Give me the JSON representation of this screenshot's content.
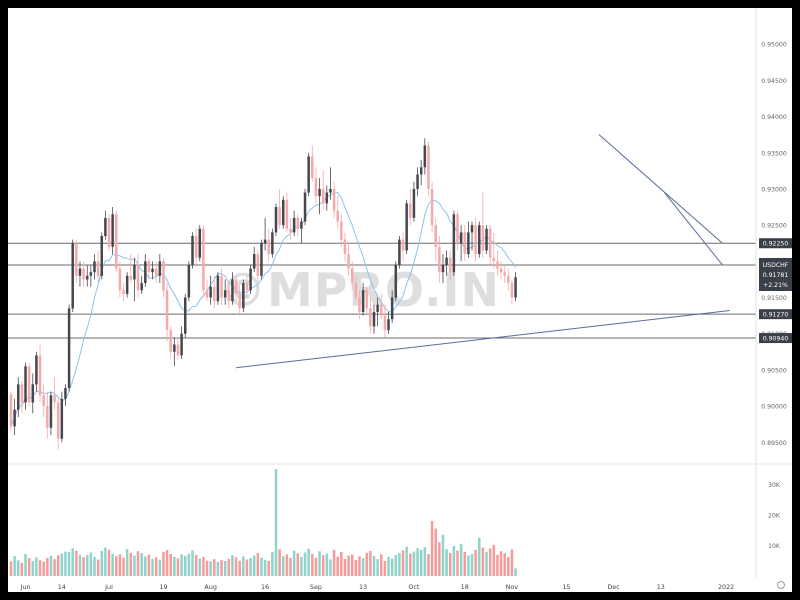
{
  "chart_data": {
    "type": "candlestick",
    "symbol": "USDCHF",
    "watermark": "©MPRO.IN",
    "price_axis": {
      "ylim": [
        0.892,
        0.955
      ],
      "ticks": [
        "0.95000",
        "0.94500",
        "0.94000",
        "0.93500",
        "0.93000",
        "0.92500",
        "0.92000",
        "0.91500",
        "0.91000",
        "0.90500",
        "0.90000",
        "0.89500"
      ],
      "tick_values": [
        0.95,
        0.945,
        0.94,
        0.935,
        0.93,
        0.925,
        0.92,
        0.915,
        0.91,
        0.905,
        0.9,
        0.895
      ]
    },
    "volume_axis": {
      "ylim": [
        0,
        36000
      ],
      "ticks": [
        "30K",
        "20K",
        "10K"
      ],
      "tick_values": [
        30000,
        20000,
        10000
      ]
    },
    "x_axis": {
      "labels": [
        "Jun",
        "14",
        "Jul",
        "19",
        "Aug",
        "16",
        "Sep",
        "13",
        "Oct",
        "18",
        "Nov",
        "15",
        "Dec",
        "13",
        "2022"
      ],
      "label_index": [
        4,
        14,
        27,
        42,
        55,
        70,
        84,
        97,
        111,
        125,
        138,
        153,
        166,
        179,
        197
      ]
    },
    "horizontal_levels": [
      {
        "label": "0.92250",
        "value": 0.9225
      },
      {
        "label": "0.91950",
        "value": 0.9195
      },
      {
        "label": "0.91270",
        "value": 0.9127
      },
      {
        "label": "0.90940",
        "value": 0.9094
      }
    ],
    "price_badge": {
      "symbol": "USDCHF",
      "price": "0.91781",
      "change": "+2.21%",
      "value": 0.91781
    },
    "trend_lines": [
      {
        "from": [
          62,
          0.9053
        ],
        "to": [
          198,
          0.9132
        ]
      },
      {
        "from": [
          162,
          0.9375
        ],
        "to": [
          196,
          0.9225
        ]
      },
      {
        "from": [
          180,
          0.9295
        ],
        "to": [
          196,
          0.9195
        ]
      }
    ],
    "candles": [
      [
        0.9016,
        0.902,
        0.8965,
        0.8972,
        4800
      ],
      [
        0.8972,
        0.901,
        0.896,
        0.8995,
        6500
      ],
      [
        0.8995,
        0.904,
        0.8985,
        0.903,
        5100
      ],
      [
        0.903,
        0.9035,
        0.899,
        0.9005,
        4300
      ],
      [
        0.9005,
        0.906,
        0.8995,
        0.9055,
        7200
      ],
      [
        0.9055,
        0.906,
        0.9,
        0.9005,
        5800
      ],
      [
        0.9005,
        0.9045,
        0.899,
        0.903,
        4900
      ],
      [
        0.903,
        0.9075,
        0.902,
        0.907,
        6100
      ],
      [
        0.907,
        0.9085,
        0.9005,
        0.9015,
        5200
      ],
      [
        0.9015,
        0.903,
        0.8985,
        0.9,
        4700
      ],
      [
        0.9,
        0.902,
        0.8955,
        0.897,
        5900
      ],
      [
        0.897,
        0.902,
        0.896,
        0.9015,
        6600
      ],
      [
        0.9015,
        0.904,
        0.8995,
        0.9005,
        5500
      ],
      [
        0.9005,
        0.901,
        0.894,
        0.8955,
        6800
      ],
      [
        0.8955,
        0.902,
        0.895,
        0.901,
        7400
      ],
      [
        0.901,
        0.903,
        0.9,
        0.9025,
        8000
      ],
      [
        0.9025,
        0.914,
        0.902,
        0.9135,
        7800
      ],
      [
        0.9135,
        0.923,
        0.913,
        0.9225,
        9100
      ],
      [
        0.9225,
        0.923,
        0.917,
        0.918,
        8300
      ],
      [
        0.918,
        0.92,
        0.9165,
        0.919,
        7000
      ],
      [
        0.919,
        0.92,
        0.9165,
        0.9175,
        6200
      ],
      [
        0.9175,
        0.9195,
        0.9165,
        0.918,
        6900
      ],
      [
        0.918,
        0.9195,
        0.9165,
        0.9185,
        7700
      ],
      [
        0.9185,
        0.921,
        0.9175,
        0.92,
        6300
      ],
      [
        0.92,
        0.9215,
        0.917,
        0.918,
        5400
      ],
      [
        0.918,
        0.924,
        0.9175,
        0.9235,
        8200
      ],
      [
        0.9235,
        0.927,
        0.923,
        0.926,
        9300
      ],
      [
        0.926,
        0.9265,
        0.9215,
        0.922,
        8600
      ],
      [
        0.922,
        0.9275,
        0.921,
        0.9265,
        7300
      ],
      [
        0.9265,
        0.927,
        0.9185,
        0.919,
        6500
      ],
      [
        0.919,
        0.92,
        0.915,
        0.916,
        7100
      ],
      [
        0.916,
        0.917,
        0.9145,
        0.9155,
        6000
      ],
      [
        0.9155,
        0.9185,
        0.915,
        0.918,
        8800
      ],
      [
        0.918,
        0.921,
        0.917,
        0.9175,
        7600
      ],
      [
        0.9175,
        0.9205,
        0.9145,
        0.9195,
        6700
      ],
      [
        0.9195,
        0.921,
        0.915,
        0.916,
        8100
      ],
      [
        0.916,
        0.918,
        0.9155,
        0.917,
        7500
      ],
      [
        0.917,
        0.921,
        0.9165,
        0.92,
        6400
      ],
      [
        0.92,
        0.9205,
        0.9175,
        0.9185,
        7000
      ],
      [
        0.9185,
        0.92,
        0.9175,
        0.919,
        5600
      ],
      [
        0.919,
        0.92,
        0.917,
        0.918,
        6100
      ],
      [
        0.918,
        0.921,
        0.917,
        0.92,
        5300
      ],
      [
        0.92,
        0.9205,
        0.915,
        0.916,
        7900
      ],
      [
        0.916,
        0.917,
        0.909,
        0.9105,
        8500
      ],
      [
        0.9105,
        0.911,
        0.9065,
        0.9075,
        7200
      ],
      [
        0.9075,
        0.9095,
        0.9055,
        0.9085,
        6300
      ],
      [
        0.9085,
        0.9095,
        0.9065,
        0.907,
        5800
      ],
      [
        0.907,
        0.911,
        0.9065,
        0.91,
        7100
      ],
      [
        0.91,
        0.9155,
        0.9095,
        0.915,
        6600
      ],
      [
        0.915,
        0.92,
        0.9145,
        0.9195,
        7300
      ],
      [
        0.9195,
        0.924,
        0.919,
        0.9235,
        8400
      ],
      [
        0.9235,
        0.9245,
        0.9195,
        0.9205,
        6900
      ],
      [
        0.9205,
        0.925,
        0.92,
        0.9245,
        5700
      ],
      [
        0.9245,
        0.925,
        0.915,
        0.916,
        6200
      ],
      [
        0.916,
        0.9175,
        0.9145,
        0.915,
        5000
      ],
      [
        0.915,
        0.918,
        0.914,
        0.9165,
        4800
      ],
      [
        0.9165,
        0.918,
        0.9135,
        0.9145,
        5500
      ],
      [
        0.9145,
        0.9185,
        0.914,
        0.918,
        4600
      ],
      [
        0.918,
        0.919,
        0.914,
        0.915,
        5200
      ],
      [
        0.915,
        0.9175,
        0.914,
        0.916,
        4900
      ],
      [
        0.916,
        0.917,
        0.9135,
        0.9145,
        5600
      ],
      [
        0.9145,
        0.9185,
        0.914,
        0.9175,
        6800
      ],
      [
        0.9175,
        0.918,
        0.9145,
        0.9155,
        6100
      ],
      [
        0.9155,
        0.9165,
        0.9125,
        0.9135,
        5000
      ],
      [
        0.9135,
        0.9175,
        0.913,
        0.917,
        6400
      ],
      [
        0.917,
        0.918,
        0.915,
        0.916,
        5400
      ],
      [
        0.916,
        0.9195,
        0.9155,
        0.919,
        5900
      ],
      [
        0.919,
        0.922,
        0.9185,
        0.921,
        6700
      ],
      [
        0.921,
        0.9215,
        0.917,
        0.918,
        7500
      ],
      [
        0.918,
        0.923,
        0.9175,
        0.9225,
        6000
      ],
      [
        0.9225,
        0.926,
        0.9215,
        0.923,
        5300
      ],
      [
        0.923,
        0.9245,
        0.92,
        0.921,
        4900
      ],
      [
        0.921,
        0.9245,
        0.9205,
        0.924,
        7800
      ],
      [
        0.924,
        0.928,
        0.9235,
        0.9275,
        35000
      ],
      [
        0.9275,
        0.93,
        0.9245,
        0.925,
        8700
      ],
      [
        0.925,
        0.929,
        0.9245,
        0.9285,
        6500
      ],
      [
        0.9285,
        0.9295,
        0.924,
        0.9245,
        7100
      ],
      [
        0.9245,
        0.926,
        0.923,
        0.924,
        5900
      ],
      [
        0.924,
        0.927,
        0.9235,
        0.926,
        8300
      ],
      [
        0.926,
        0.9265,
        0.9235,
        0.9245,
        7400
      ],
      [
        0.9245,
        0.926,
        0.9225,
        0.9255,
        6200
      ],
      [
        0.9255,
        0.93,
        0.925,
        0.9295,
        7700
      ],
      [
        0.9295,
        0.935,
        0.929,
        0.9345,
        8900
      ],
      [
        0.9345,
        0.936,
        0.931,
        0.9315,
        7200
      ],
      [
        0.9315,
        0.933,
        0.928,
        0.929,
        6000
      ],
      [
        0.929,
        0.9315,
        0.9265,
        0.93,
        8100
      ],
      [
        0.93,
        0.9325,
        0.927,
        0.928,
        6800
      ],
      [
        0.928,
        0.9305,
        0.927,
        0.9295,
        7300
      ],
      [
        0.9295,
        0.933,
        0.9285,
        0.93,
        5400
      ],
      [
        0.93,
        0.931,
        0.926,
        0.927,
        8600
      ],
      [
        0.927,
        0.929,
        0.9245,
        0.9255,
        6300
      ],
      [
        0.9255,
        0.9265,
        0.922,
        0.923,
        7900
      ],
      [
        0.923,
        0.924,
        0.92,
        0.921,
        5600
      ],
      [
        0.921,
        0.9225,
        0.918,
        0.919,
        6700
      ],
      [
        0.919,
        0.92,
        0.916,
        0.917,
        7000
      ],
      [
        0.917,
        0.918,
        0.9145,
        0.915,
        5200
      ],
      [
        0.915,
        0.916,
        0.912,
        0.913,
        6400
      ],
      [
        0.913,
        0.917,
        0.9125,
        0.916,
        5800
      ],
      [
        0.916,
        0.9165,
        0.9125,
        0.9135,
        7600
      ],
      [
        0.9135,
        0.915,
        0.91,
        0.911,
        8200
      ],
      [
        0.911,
        0.914,
        0.91,
        0.913,
        6600
      ],
      [
        0.913,
        0.915,
        0.911,
        0.914,
        5500
      ],
      [
        0.914,
        0.9155,
        0.912,
        0.9125,
        7100
      ],
      [
        0.9125,
        0.914,
        0.9095,
        0.9105,
        4900
      ],
      [
        0.9105,
        0.913,
        0.91,
        0.912,
        6300
      ],
      [
        0.912,
        0.916,
        0.9115,
        0.915,
        5700
      ],
      [
        0.915,
        0.92,
        0.9145,
        0.9195,
        6900
      ],
      [
        0.9195,
        0.9235,
        0.919,
        0.923,
        7500
      ],
      [
        0.923,
        0.924,
        0.92,
        0.9215,
        8400
      ],
      [
        0.9215,
        0.9285,
        0.921,
        0.928,
        9600
      ],
      [
        0.928,
        0.93,
        0.925,
        0.926,
        7300
      ],
      [
        0.926,
        0.931,
        0.9255,
        0.93,
        8000
      ],
      [
        0.93,
        0.933,
        0.929,
        0.932,
        9100
      ],
      [
        0.932,
        0.934,
        0.9305,
        0.933,
        8600
      ],
      [
        0.933,
        0.937,
        0.932,
        0.936,
        9400
      ],
      [
        0.936,
        0.9365,
        0.929,
        0.93,
        7200
      ],
      [
        0.93,
        0.931,
        0.924,
        0.925,
        18000
      ],
      [
        0.925,
        0.926,
        0.92,
        0.922,
        15500
      ],
      [
        0.922,
        0.9235,
        0.917,
        0.9185,
        11000
      ],
      [
        0.9185,
        0.921,
        0.917,
        0.9195,
        13500
      ],
      [
        0.9195,
        0.9215,
        0.918,
        0.9205,
        8800
      ],
      [
        0.9205,
        0.9215,
        0.9175,
        0.9185,
        7500
      ],
      [
        0.9185,
        0.927,
        0.918,
        0.9265,
        9800
      ],
      [
        0.9265,
        0.927,
        0.9215,
        0.9225,
        8300
      ],
      [
        0.9225,
        0.925,
        0.92,
        0.924,
        10500
      ],
      [
        0.924,
        0.925,
        0.92,
        0.921,
        7900
      ],
      [
        0.921,
        0.9255,
        0.9205,
        0.924,
        6700
      ],
      [
        0.924,
        0.9255,
        0.9215,
        0.925,
        7200
      ],
      [
        0.925,
        0.926,
        0.92,
        0.921,
        8600
      ],
      [
        0.921,
        0.9255,
        0.9205,
        0.925,
        12500
      ],
      [
        0.925,
        0.9295,
        0.9205,
        0.9215,
        9300
      ],
      [
        0.9215,
        0.925,
        0.921,
        0.9245,
        7800
      ],
      [
        0.9245,
        0.925,
        0.9195,
        0.9205,
        9000
      ],
      [
        0.9205,
        0.924,
        0.919,
        0.92,
        10200
      ],
      [
        0.92,
        0.9215,
        0.918,
        0.919,
        6900
      ],
      [
        0.919,
        0.92,
        0.9175,
        0.9185,
        8100
      ],
      [
        0.9185,
        0.9195,
        0.917,
        0.918,
        7400
      ],
      [
        0.918,
        0.919,
        0.916,
        0.917,
        6200
      ],
      [
        0.917,
        0.9175,
        0.914,
        0.915,
        8700
      ],
      [
        0.915,
        0.9185,
        0.9145,
        0.9178,
        2500
      ]
    ],
    "ma_period": 10
  }
}
